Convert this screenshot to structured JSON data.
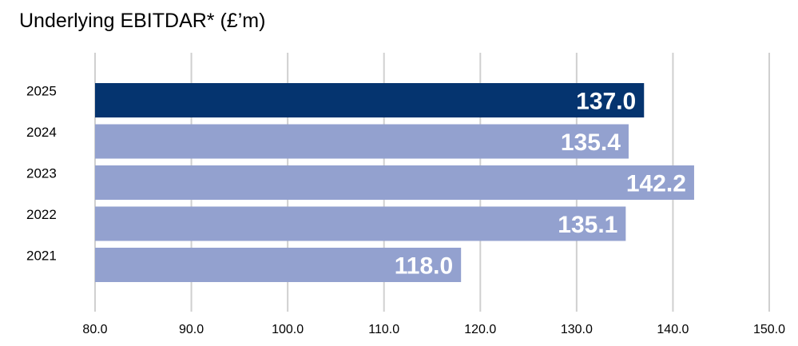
{
  "chart_data": {
    "type": "bar",
    "orientation": "horizontal",
    "title": "Underlying EBITDAR* (£’m)",
    "categories": [
      "2025",
      "2024",
      "2023",
      "2022",
      "2021"
    ],
    "values": [
      137.0,
      135.4,
      142.2,
      135.1,
      118.0
    ],
    "data_labels": [
      "137.0",
      "135.4",
      "142.2",
      "135.1",
      "118.0"
    ],
    "xlim": [
      80,
      150
    ],
    "x_ticks": [
      "80.0",
      "90.0",
      "100.0",
      "110.0",
      "120.0",
      "130.0",
      "140.0",
      "150.0"
    ],
    "x_tick_values": [
      80,
      90,
      100,
      110,
      120,
      130,
      140,
      150
    ],
    "grid": "vertical",
    "legend": "none",
    "colors": {
      "highlight": "#05346f",
      "default": "#93a1cf",
      "label": "#ffffff",
      "grid": "#d0d0d0"
    },
    "highlight_index": 0
  }
}
